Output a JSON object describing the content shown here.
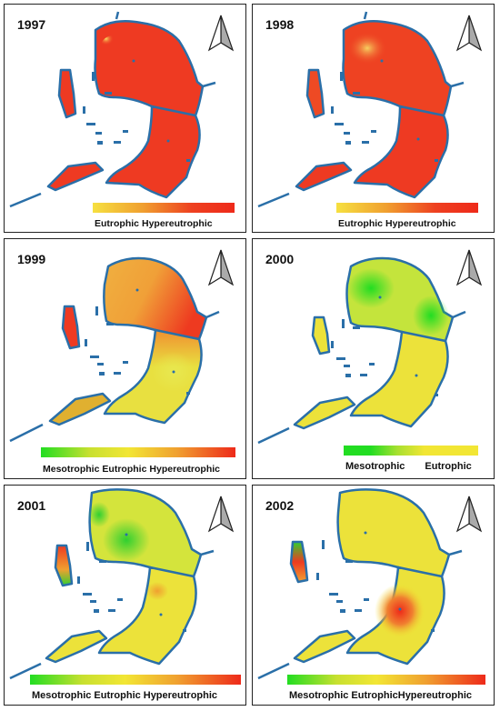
{
  "panels": [
    {
      "year": "1997",
      "legend_labels": [
        "Eutrophic",
        "Hypereutrophic"
      ]
    },
    {
      "year": "1998",
      "legend_labels": [
        "Eutrophic",
        "Hypereutrophic"
      ]
    },
    {
      "year": "1999",
      "legend_labels": [
        "Mesotrophic",
        "Eutrophic",
        "Hypereutrophic"
      ]
    },
    {
      "year": "2000",
      "legend_labels": [
        "Mesotrophic",
        "Eutrophic"
      ]
    },
    {
      "year": "2001",
      "legend_labels": [
        "Mesotrophic",
        "Eutrophic",
        "Hypereutrophic"
      ]
    },
    {
      "year": "2002",
      "legend_labels": [
        "Mesotrophic",
        "Eutrophic",
        "Hypereutrophic"
      ]
    }
  ],
  "colors": {
    "outline": "#2a6fa8",
    "mesotrophic": "#22dd22",
    "eutrophic": "#f2e634",
    "hypereutrophic": "#ee2a1a"
  }
}
